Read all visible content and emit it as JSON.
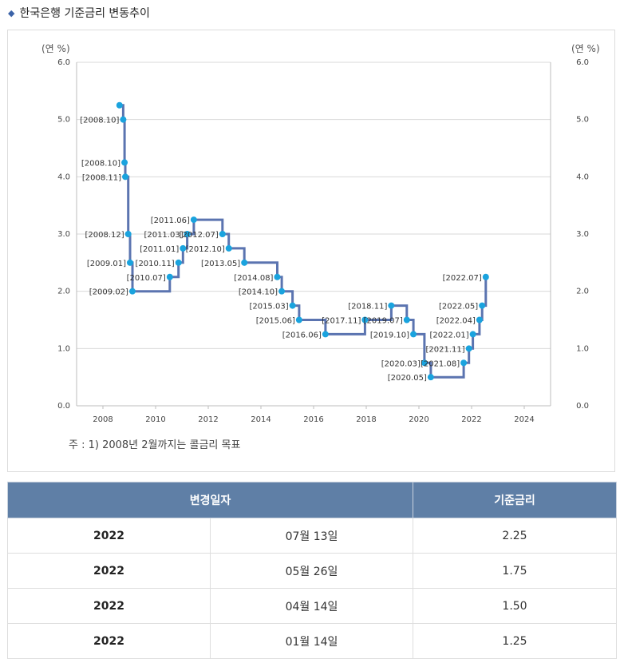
{
  "title": "한국은행 기준금리 변동추이",
  "note": "주 : 1) 2008년 2월까지는 콜금리 목표",
  "chart_data": {
    "type": "line",
    "step": true,
    "unit_left": "(연 %)",
    "unit_right": "(연 %)",
    "xlim": [
      2007,
      2025
    ],
    "ylim": [
      0,
      6
    ],
    "x_ticks": [
      "2008",
      "2010",
      "2012",
      "2014",
      "2016",
      "2018",
      "2020",
      "2022",
      "2024"
    ],
    "y_ticks": [
      "0.0",
      "1.0",
      "2.0",
      "3.0",
      "4.0",
      "5.0",
      "6.0"
    ],
    "grid": true,
    "line_color": "#5b74b0",
    "marker_color": "#1aa3de",
    "points": [
      {
        "x": 2008.63,
        "y": 5.25,
        "label": ""
      },
      {
        "x": 2008.77,
        "y": 5.0,
        "label": "[2008.10]"
      },
      {
        "x": 2008.82,
        "y": 4.25,
        "label": "[2008.10]"
      },
      {
        "x": 2008.85,
        "y": 4.0,
        "label": "[2008.11]"
      },
      {
        "x": 2008.96,
        "y": 3.0,
        "label": "[2008.12]"
      },
      {
        "x": 2009.03,
        "y": 2.5,
        "label": "[2009.01]"
      },
      {
        "x": 2009.12,
        "y": 2.0,
        "label": "[2009.02]"
      },
      {
        "x": 2010.54,
        "y": 2.25,
        "label": "[2010.07]"
      },
      {
        "x": 2010.87,
        "y": 2.5,
        "label": "[2010.11]"
      },
      {
        "x": 2011.04,
        "y": 2.75,
        "label": "[2011.01]"
      },
      {
        "x": 2011.2,
        "y": 3.0,
        "label": "[2011.03]"
      },
      {
        "x": 2011.45,
        "y": 3.25,
        "label": "[2011.06]"
      },
      {
        "x": 2012.54,
        "y": 3.0,
        "label": "[2012.07]"
      },
      {
        "x": 2012.78,
        "y": 2.75,
        "label": "[2012.10]"
      },
      {
        "x": 2013.37,
        "y": 2.5,
        "label": "[2013.05]"
      },
      {
        "x": 2014.62,
        "y": 2.25,
        "label": "[2014.08]"
      },
      {
        "x": 2014.79,
        "y": 2.0,
        "label": "[2014.10]"
      },
      {
        "x": 2015.2,
        "y": 1.75,
        "label": "[2015.03]"
      },
      {
        "x": 2015.45,
        "y": 1.5,
        "label": "[2015.06]"
      },
      {
        "x": 2016.45,
        "y": 1.25,
        "label": "[2016.06]"
      },
      {
        "x": 2017.95,
        "y": 1.5,
        "label": "[2017.11]"
      },
      {
        "x": 2018.95,
        "y": 1.75,
        "label": "[2018.11]"
      },
      {
        "x": 2019.54,
        "y": 1.5,
        "label": "[2019.07]"
      },
      {
        "x": 2019.79,
        "y": 1.25,
        "label": "[2019.10]"
      },
      {
        "x": 2020.21,
        "y": 0.75,
        "label": "[2020.03]"
      },
      {
        "x": 2020.45,
        "y": 0.5,
        "label": "[2020.05]"
      },
      {
        "x": 2021.7,
        "y": 0.75,
        "label": "[2021.08]"
      },
      {
        "x": 2021.9,
        "y": 1.0,
        "label": "[2021.11]"
      },
      {
        "x": 2022.05,
        "y": 1.25,
        "label": "[2022.01]"
      },
      {
        "x": 2022.3,
        "y": 1.5,
        "label": "[2022.04]"
      },
      {
        "x": 2022.4,
        "y": 1.75,
        "label": "[2022.05]"
      },
      {
        "x": 2022.54,
        "y": 2.25,
        "label": "[2022.07]"
      }
    ]
  },
  "table": {
    "headers": [
      "변경일자",
      "기준금리"
    ],
    "rows": [
      {
        "year": "2022",
        "date": "07월 13일",
        "rate": "2.25"
      },
      {
        "year": "2022",
        "date": "05월 26일",
        "rate": "1.75"
      },
      {
        "year": "2022",
        "date": "04월 14일",
        "rate": "1.50"
      },
      {
        "year": "2022",
        "date": "01월 14일",
        "rate": "1.25"
      }
    ]
  }
}
